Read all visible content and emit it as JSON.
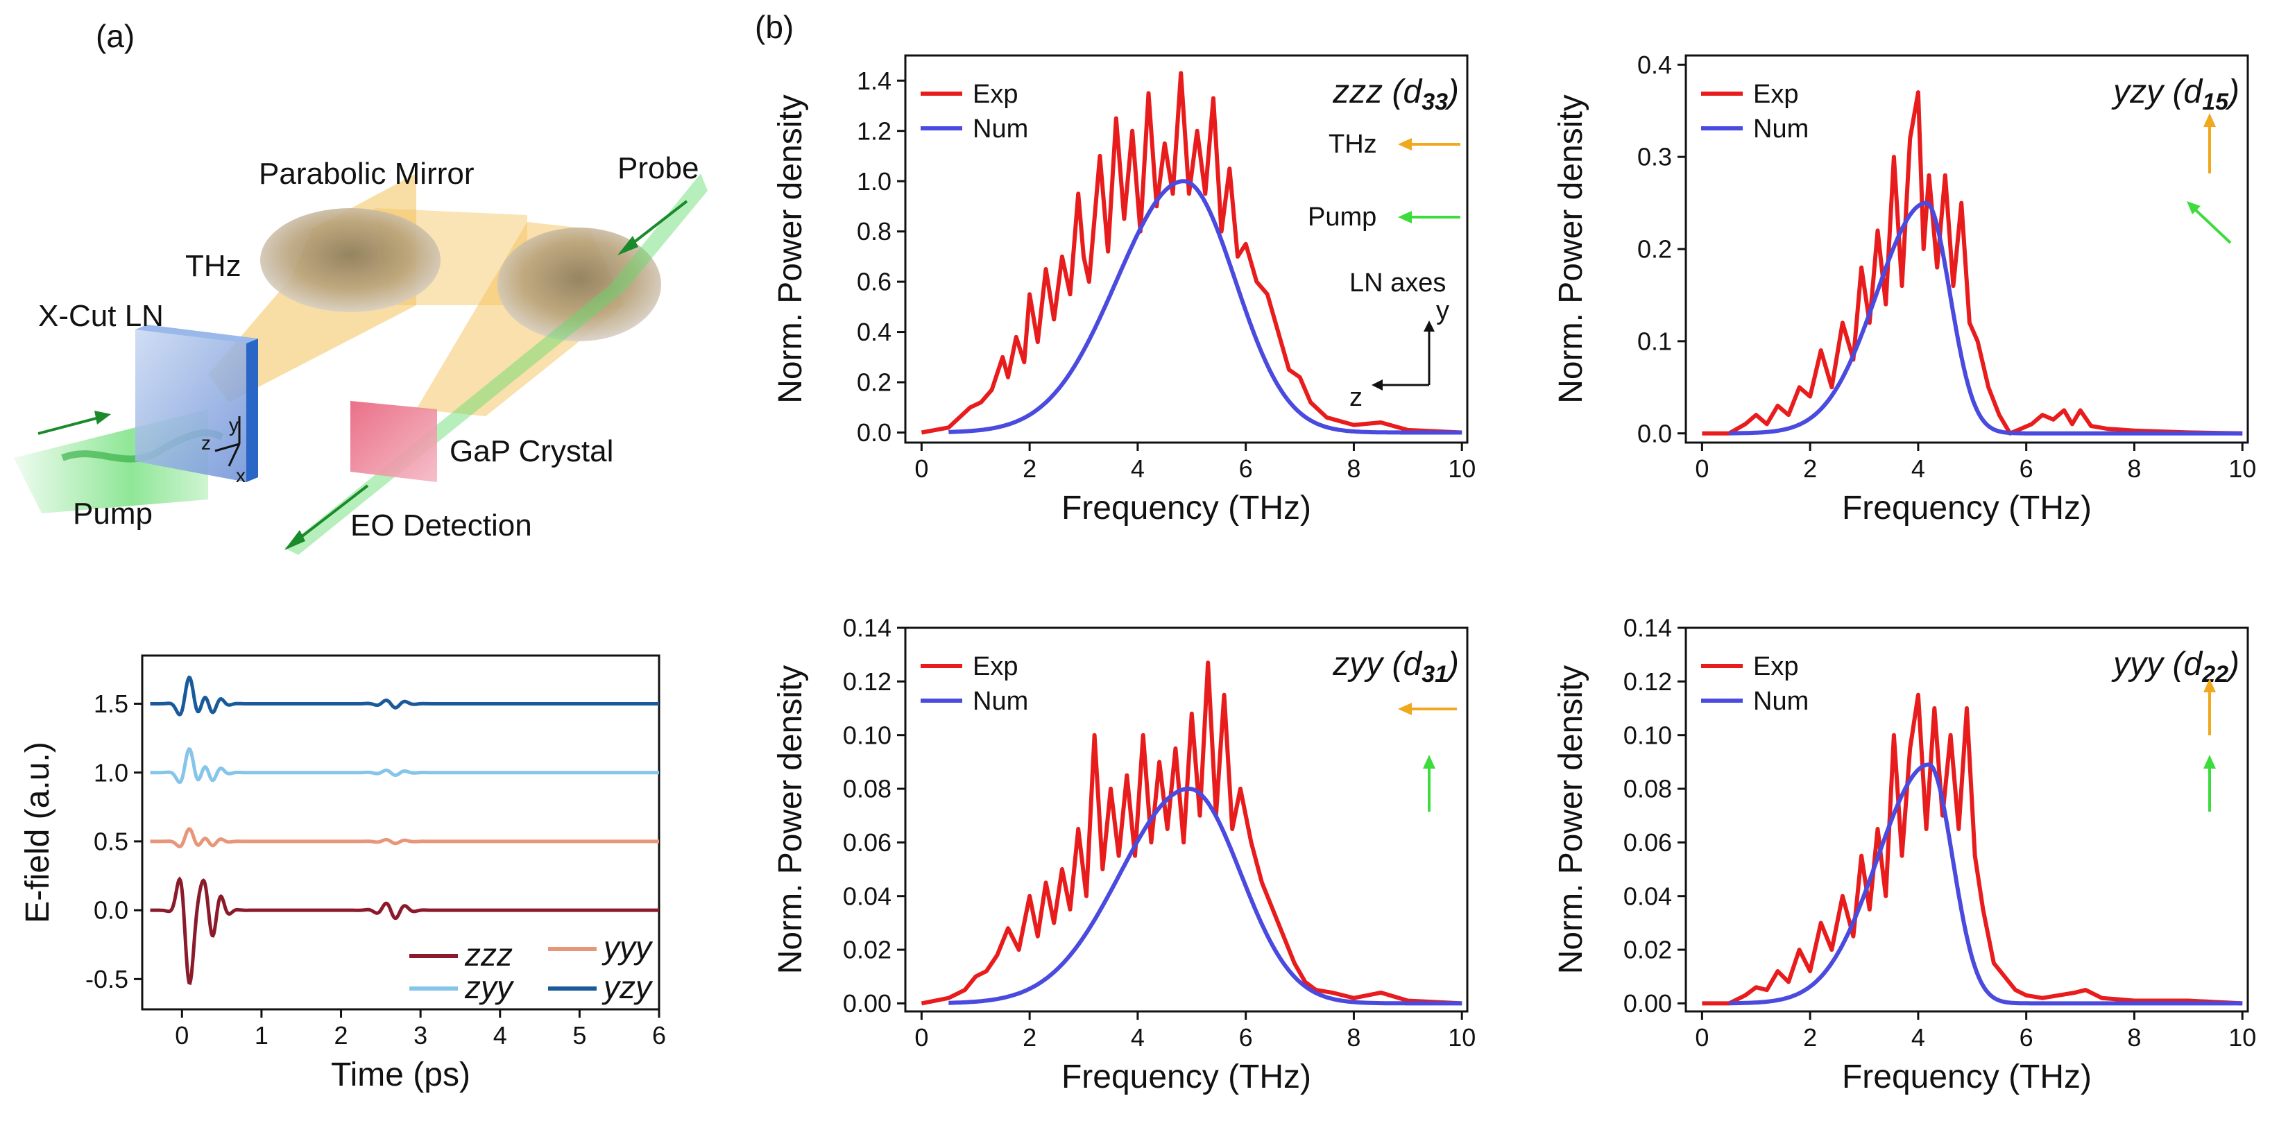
{
  "panel_labels": {
    "a": "(a)",
    "b": "(b)"
  },
  "colors": {
    "exp": "#e81c1c",
    "num": "#4a4adf",
    "thz_arrow": "#f0a81c",
    "pump_arrow": "#3ddc3d",
    "zzz": "#8b1a2b",
    "yyy": "#e8967a",
    "zyy": "#86c5ea",
    "yzy": "#1a5a9a",
    "laser": "#5fdc6a",
    "thz_beam": "#f3c25a",
    "mirror": "#b8a27a",
    "ln": "#8aaee0",
    "gap": "#e0405a"
  },
  "schematic": {
    "parabolic_mirror": "Parabolic Mirror",
    "probe": "Probe",
    "thz": "THz",
    "x_cut_ln": "X-Cut LN",
    "gap_crystal": "GaP Crystal",
    "pump": "Pump",
    "eo_detection": "EO Detection",
    "axis_y": "y",
    "axis_z": "z",
    "axis_x": "x"
  },
  "overlay": {
    "thz": "THz",
    "pump": "Pump",
    "ln_axes": "LN axes",
    "axis_y": "y",
    "axis_z": "z"
  },
  "chart_data": [
    {
      "id": "time",
      "type": "line",
      "xlabel": "Time (ps)",
      "ylabel": "E-field (a.u.)",
      "xlim": [
        -0.5,
        6
      ],
      "ylim": [
        -0.72,
        1.85
      ],
      "xticks": [
        0,
        1,
        2,
        3,
        4,
        5,
        6
      ],
      "xtick_labels": [
        "0",
        "1",
        "2",
        "3",
        "4",
        "5",
        "6"
      ],
      "yticks": [
        -0.5,
        0,
        0.5,
        1,
        1.5
      ],
      "ytick_labels": [
        "-0.5",
        "0.0",
        "0.5",
        "1.0",
        "1.5"
      ],
      "legend": [
        "zzz",
        "yyy",
        "zyy",
        "yzy"
      ],
      "series": [
        {
          "name": "zzz",
          "offset": 0.0,
          "amp": 0.55,
          "echo_amp": 0.06
        },
        {
          "name": "yyy",
          "offset": 0.5,
          "amp": 0.09,
          "echo_amp": 0.015
        },
        {
          "name": "zyy",
          "offset": 1.0,
          "amp": 0.17,
          "echo_amp": 0.02
        },
        {
          "name": "yzy",
          "offset": 1.5,
          "amp": 0.19,
          "echo_amp": 0.03
        }
      ]
    },
    {
      "id": "zzz",
      "type": "line",
      "title_main": "zzz",
      "title_open": " (",
      "title_d": "d",
      "title_sub": "33",
      "title_close": ")",
      "xlabel": "Frequency (THz)",
      "ylabel": "Norm. Power density",
      "xlim": [
        -0.3,
        10.1
      ],
      "ylim": [
        -0.04,
        1.5
      ],
      "xticks": [
        0,
        2,
        4,
        6,
        8,
        10
      ],
      "xtick_labels": [
        "0",
        "2",
        "4",
        "6",
        "8",
        "10"
      ],
      "yticks": [
        0,
        0.2,
        0.4,
        0.6,
        0.8,
        1.0,
        1.2,
        1.4
      ],
      "ytick_labels": [
        "0.0",
        "0.2",
        "0.4",
        "0.6",
        "0.8",
        "1.0",
        "1.2",
        "1.4"
      ],
      "legend": [
        "Exp",
        "Num"
      ],
      "exp_x": [
        0,
        0.5,
        0.7,
        0.9,
        1.1,
        1.3,
        1.5,
        1.6,
        1.75,
        1.9,
        2.0,
        2.15,
        2.3,
        2.45,
        2.6,
        2.75,
        2.9,
        3.0,
        3.1,
        3.3,
        3.45,
        3.6,
        3.75,
        3.9,
        4.05,
        4.2,
        4.35,
        4.5,
        4.65,
        4.8,
        4.95,
        5.1,
        5.25,
        5.4,
        5.55,
        5.7,
        5.85,
        6.0,
        6.2,
        6.4,
        6.6,
        6.8,
        7.0,
        7.2,
        7.5,
        8.0,
        8.5,
        9.0,
        10.0
      ],
      "exp_y": [
        0.0,
        0.02,
        0.06,
        0.1,
        0.12,
        0.17,
        0.3,
        0.22,
        0.38,
        0.28,
        0.55,
        0.36,
        0.65,
        0.45,
        0.7,
        0.55,
        0.95,
        0.7,
        0.6,
        1.1,
        0.72,
        1.25,
        0.85,
        1.2,
        0.8,
        1.35,
        0.9,
        1.15,
        0.95,
        1.43,
        0.95,
        1.2,
        0.95,
        1.33,
        0.8,
        1.05,
        0.7,
        0.75,
        0.6,
        0.55,
        0.4,
        0.25,
        0.22,
        0.12,
        0.06,
        0.03,
        0.04,
        0.01,
        0.0
      ],
      "num_mu": 4.85,
      "num_amp": 1.0,
      "num_sigma_left": 1.75,
      "num_sigma_right": 1.35
    },
    {
      "id": "yzy",
      "type": "line",
      "title_main": "yzy",
      "title_open": " (",
      "title_d": "d",
      "title_sub": "15",
      "title_close": ")",
      "xlabel": "Frequency (THz)",
      "ylabel": "Norm. Power density",
      "xlim": [
        -0.3,
        10.1
      ],
      "ylim": [
        -0.01,
        0.41
      ],
      "xticks": [
        0,
        2,
        4,
        6,
        8,
        10
      ],
      "xtick_labels": [
        "0",
        "2",
        "4",
        "6",
        "8",
        "10"
      ],
      "yticks": [
        0,
        0.1,
        0.2,
        0.3,
        0.4
      ],
      "ytick_labels": [
        "0.0",
        "0.1",
        "0.2",
        "0.3",
        "0.4"
      ],
      "legend": [
        "Exp",
        "Num"
      ],
      "exp_x": [
        0,
        0.5,
        0.8,
        1.0,
        1.2,
        1.4,
        1.6,
        1.8,
        2.0,
        2.2,
        2.4,
        2.6,
        2.8,
        2.95,
        3.1,
        3.25,
        3.4,
        3.55,
        3.7,
        3.85,
        4.0,
        4.1,
        4.2,
        4.35,
        4.5,
        4.65,
        4.8,
        4.95,
        5.1,
        5.3,
        5.5,
        5.7,
        5.9,
        6.1,
        6.3,
        6.5,
        6.7,
        6.85,
        7.0,
        7.2,
        7.5,
        8.0,
        9.0,
        10.0
      ],
      "exp_y": [
        0.0,
        0.0,
        0.01,
        0.02,
        0.01,
        0.03,
        0.02,
        0.05,
        0.04,
        0.09,
        0.05,
        0.12,
        0.08,
        0.18,
        0.12,
        0.22,
        0.14,
        0.3,
        0.16,
        0.32,
        0.37,
        0.2,
        0.28,
        0.18,
        0.28,
        0.16,
        0.25,
        0.12,
        0.1,
        0.05,
        0.02,
        0.0,
        0.005,
        0.01,
        0.02,
        0.015,
        0.025,
        0.01,
        0.025,
        0.008,
        0.005,
        0.003,
        0.001,
        0.0
      ],
      "num_mu": 4.15,
      "num_amp": 0.25,
      "num_sigma_left": 1.3,
      "num_sigma_right": 0.62
    },
    {
      "id": "zyy",
      "type": "line",
      "title_main": "zyy",
      "title_open": " (",
      "title_d": "d",
      "title_sub": "31",
      "title_close": ")",
      "xlabel": "Frequency (THz)",
      "ylabel": "Norm. Power density",
      "xlim": [
        -0.3,
        10.1
      ],
      "ylim": [
        -0.003,
        0.14
      ],
      "xticks": [
        0,
        2,
        4,
        6,
        8,
        10
      ],
      "xtick_labels": [
        "0",
        "2",
        "4",
        "6",
        "8",
        "10"
      ],
      "yticks": [
        0,
        0.02,
        0.04,
        0.06,
        0.08,
        0.1,
        0.12,
        0.14
      ],
      "ytick_labels": [
        "0.00",
        "0.02",
        "0.04",
        "0.06",
        "0.08",
        "0.10",
        "0.12",
        "0.14"
      ],
      "legend": [
        "Exp",
        "Num"
      ],
      "exp_x": [
        0,
        0.5,
        0.8,
        1.0,
        1.2,
        1.4,
        1.6,
        1.8,
        2.0,
        2.15,
        2.3,
        2.45,
        2.6,
        2.75,
        2.9,
        3.05,
        3.2,
        3.35,
        3.5,
        3.65,
        3.8,
        3.95,
        4.1,
        4.25,
        4.4,
        4.55,
        4.7,
        4.85,
        5.0,
        5.15,
        5.3,
        5.45,
        5.6,
        5.75,
        5.9,
        6.1,
        6.3,
        6.5,
        6.7,
        6.9,
        7.1,
        7.3,
        7.6,
        8.0,
        8.5,
        9.0,
        10.0
      ],
      "exp_y": [
        0.0,
        0.002,
        0.005,
        0.01,
        0.012,
        0.018,
        0.028,
        0.02,
        0.04,
        0.025,
        0.045,
        0.03,
        0.05,
        0.035,
        0.065,
        0.04,
        0.1,
        0.05,
        0.08,
        0.055,
        0.085,
        0.055,
        0.1,
        0.06,
        0.09,
        0.065,
        0.095,
        0.06,
        0.108,
        0.07,
        0.127,
        0.07,
        0.115,
        0.065,
        0.08,
        0.06,
        0.045,
        0.035,
        0.025,
        0.015,
        0.008,
        0.005,
        0.004,
        0.002,
        0.004,
        0.001,
        0.0
      ],
      "num_mu": 4.95,
      "num_amp": 0.08,
      "num_sigma_left": 1.8,
      "num_sigma_right": 1.35
    },
    {
      "id": "yyy",
      "type": "line",
      "title_main": "yyy",
      "title_open": " (",
      "title_d": "d",
      "title_sub": "22",
      "title_close": ")",
      "xlabel": "Frequency (THz)",
      "ylabel": "Norm. Power density",
      "xlim": [
        -0.3,
        10.1
      ],
      "ylim": [
        -0.003,
        0.14
      ],
      "xticks": [
        0,
        2,
        4,
        6,
        8,
        10
      ],
      "xtick_labels": [
        "0",
        "2",
        "4",
        "6",
        "8",
        "10"
      ],
      "yticks": [
        0,
        0.02,
        0.04,
        0.06,
        0.08,
        0.1,
        0.12,
        0.14
      ],
      "ytick_labels": [
        "0.00",
        "0.02",
        "0.04",
        "0.06",
        "0.08",
        "0.10",
        "0.12",
        "0.14"
      ],
      "legend": [
        "Exp",
        "Num"
      ],
      "exp_x": [
        0,
        0.5,
        0.8,
        1.0,
        1.2,
        1.4,
        1.6,
        1.8,
        2.0,
        2.2,
        2.4,
        2.6,
        2.8,
        2.95,
        3.1,
        3.25,
        3.4,
        3.55,
        3.7,
        3.85,
        4.0,
        4.15,
        4.3,
        4.45,
        4.6,
        4.75,
        4.9,
        5.05,
        5.2,
        5.4,
        5.6,
        5.8,
        6.0,
        6.3,
        6.6,
        6.9,
        7.1,
        7.4,
        8.0,
        9.0,
        10.0
      ],
      "exp_y": [
        0.0,
        0.0,
        0.003,
        0.006,
        0.005,
        0.012,
        0.008,
        0.02,
        0.012,
        0.03,
        0.02,
        0.04,
        0.025,
        0.055,
        0.035,
        0.065,
        0.04,
        0.1,
        0.055,
        0.095,
        0.115,
        0.065,
        0.11,
        0.07,
        0.1,
        0.065,
        0.11,
        0.055,
        0.035,
        0.015,
        0.01,
        0.005,
        0.003,
        0.002,
        0.003,
        0.004,
        0.005,
        0.002,
        0.001,
        0.001,
        0.0
      ],
      "num_mu": 4.2,
      "num_amp": 0.089,
      "num_sigma_left": 1.35,
      "num_sigma_right": 0.62
    }
  ]
}
